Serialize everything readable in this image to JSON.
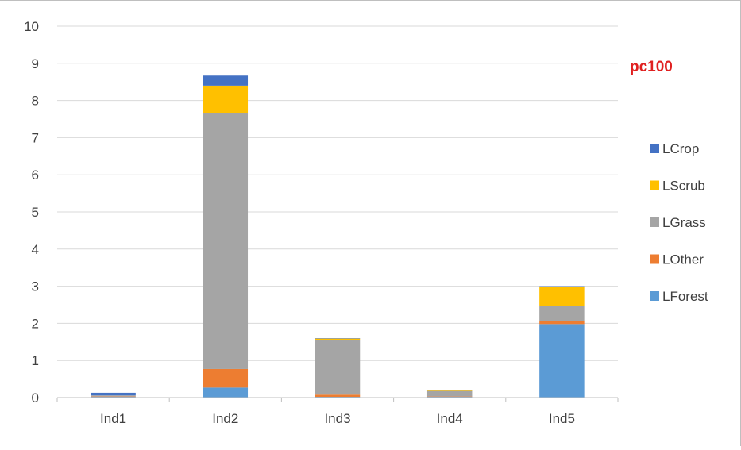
{
  "chart_data": {
    "type": "bar",
    "stacked": true,
    "title": "pc100",
    "categories": [
      "Ind1",
      "Ind2",
      "Ind3",
      "Ind4",
      "Ind5"
    ],
    "ylim": [
      0,
      10
    ],
    "yticks": [
      "0",
      "1",
      "2",
      "3",
      "4",
      "5",
      "6",
      "7",
      "8",
      "9",
      "10"
    ],
    "grid": true,
    "legend_position": "right",
    "series": [
      {
        "name": "LForest",
        "color": "#5b9bd5",
        "values": [
          0.02,
          0.27,
          0.02,
          0.02,
          1.98
        ]
      },
      {
        "name": "LOther",
        "color": "#ed7d31",
        "values": [
          0.01,
          0.5,
          0.06,
          0.01,
          0.08
        ]
      },
      {
        "name": "LGrass",
        "color": "#a5a5a5",
        "values": [
          0.03,
          6.9,
          1.48,
          0.15,
          0.4
        ]
      },
      {
        "name": "LScrub",
        "color": "#ffc000",
        "values": [
          0.0,
          0.73,
          0.03,
          0.02,
          0.53
        ]
      },
      {
        "name": "LCrop",
        "color": "#4472c4",
        "values": [
          0.07,
          0.27,
          0.01,
          0.01,
          0.01
        ]
      }
    ],
    "legend_order": [
      "LCrop",
      "LScrub",
      "LGrass",
      "LOther",
      "LForest"
    ],
    "title_color": "#e02020"
  }
}
